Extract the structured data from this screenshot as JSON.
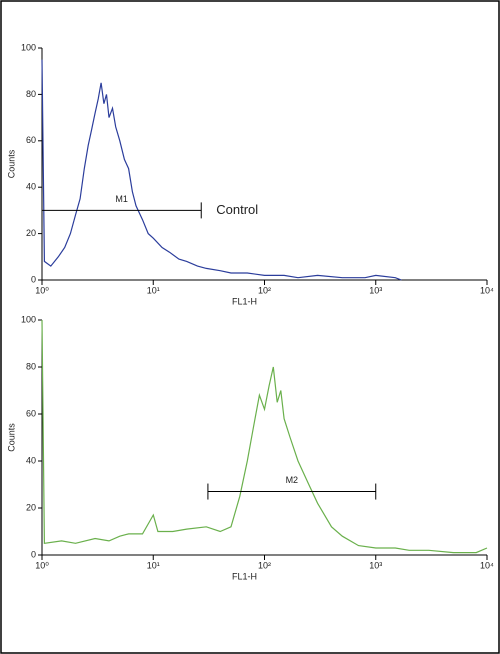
{
  "chart_data": [
    {
      "type": "line",
      "xlabel": "FL1-H",
      "ylabel": "Counts",
      "xscale": "log",
      "xlim": [
        1,
        10000
      ],
      "xticks": [
        {
          "value": 1,
          "label": "10⁰"
        },
        {
          "value": 10,
          "label": "10¹"
        },
        {
          "value": 100,
          "label": "10²"
        },
        {
          "value": 1000,
          "label": "10³"
        },
        {
          "value": 10000,
          "label": "10⁴"
        }
      ],
      "ylim": [
        0,
        100
      ],
      "yticks": [
        0,
        20,
        40,
        60,
        80,
        100
      ],
      "annotation": "Control",
      "markers": [
        {
          "label": "M1",
          "range": [
            1,
            27
          ],
          "y": 30
        }
      ],
      "series": [
        {
          "color": "#2b3d9c",
          "x": [
            1,
            1.05,
            1.2,
            1.4,
            1.6,
            1.8,
            2.0,
            2.2,
            2.4,
            2.6,
            2.8,
            3.0,
            3.2,
            3.4,
            3.6,
            3.8,
            4.0,
            4.3,
            4.6,
            5.0,
            5.5,
            6.0,
            6.5,
            7.0,
            8.0,
            9.0,
            10,
            12,
            14,
            17,
            20,
            25,
            30,
            40,
            50,
            70,
            100,
            150,
            200,
            300,
            500,
            800,
            1000,
            1500,
            1700
          ],
          "values": [
            95,
            8,
            6,
            10,
            14,
            20,
            28,
            35,
            48,
            58,
            65,
            72,
            78,
            85,
            76,
            80,
            70,
            74,
            66,
            60,
            52,
            48,
            38,
            32,
            26,
            20,
            18,
            14,
            12,
            9,
            8,
            6,
            5,
            4,
            3,
            3,
            2,
            2,
            1,
            2,
            1,
            1,
            2,
            1,
            0
          ]
        }
      ]
    },
    {
      "type": "line",
      "xlabel": "FL1-H",
      "ylabel": "Counts",
      "xscale": "log",
      "xlim": [
        1,
        10000
      ],
      "xticks": [
        {
          "value": 1,
          "label": "10⁰"
        },
        {
          "value": 10,
          "label": "10¹"
        },
        {
          "value": 100,
          "label": "10²"
        },
        {
          "value": 1000,
          "label": "10³"
        },
        {
          "value": 10000,
          "label": "10⁴"
        }
      ],
      "ylim": [
        0,
        100
      ],
      "yticks": [
        0,
        20,
        40,
        60,
        80,
        100
      ],
      "markers": [
        {
          "label": "M2",
          "range": [
            31,
            1000
          ],
          "y": 27
        }
      ],
      "series": [
        {
          "color": "#6ab04c",
          "x": [
            1,
            1.05,
            1.5,
            2,
            3,
            4,
            5,
            6,
            8,
            10,
            11,
            15,
            20,
            30,
            40,
            50,
            60,
            70,
            80,
            90,
            100,
            110,
            120,
            130,
            140,
            150,
            170,
            200,
            250,
            300,
            400,
            500,
            700,
            1000,
            1500,
            2000,
            3000,
            5000,
            8000,
            10000
          ],
          "values": [
            100,
            5,
            6,
            5,
            7,
            6,
            8,
            9,
            9,
            17,
            10,
            10,
            11,
            12,
            10,
            12,
            25,
            40,
            55,
            68,
            62,
            72,
            80,
            65,
            70,
            58,
            50,
            40,
            30,
            22,
            12,
            8,
            4,
            3,
            3,
            2,
            2,
            1,
            1,
            3
          ]
        }
      ]
    }
  ]
}
